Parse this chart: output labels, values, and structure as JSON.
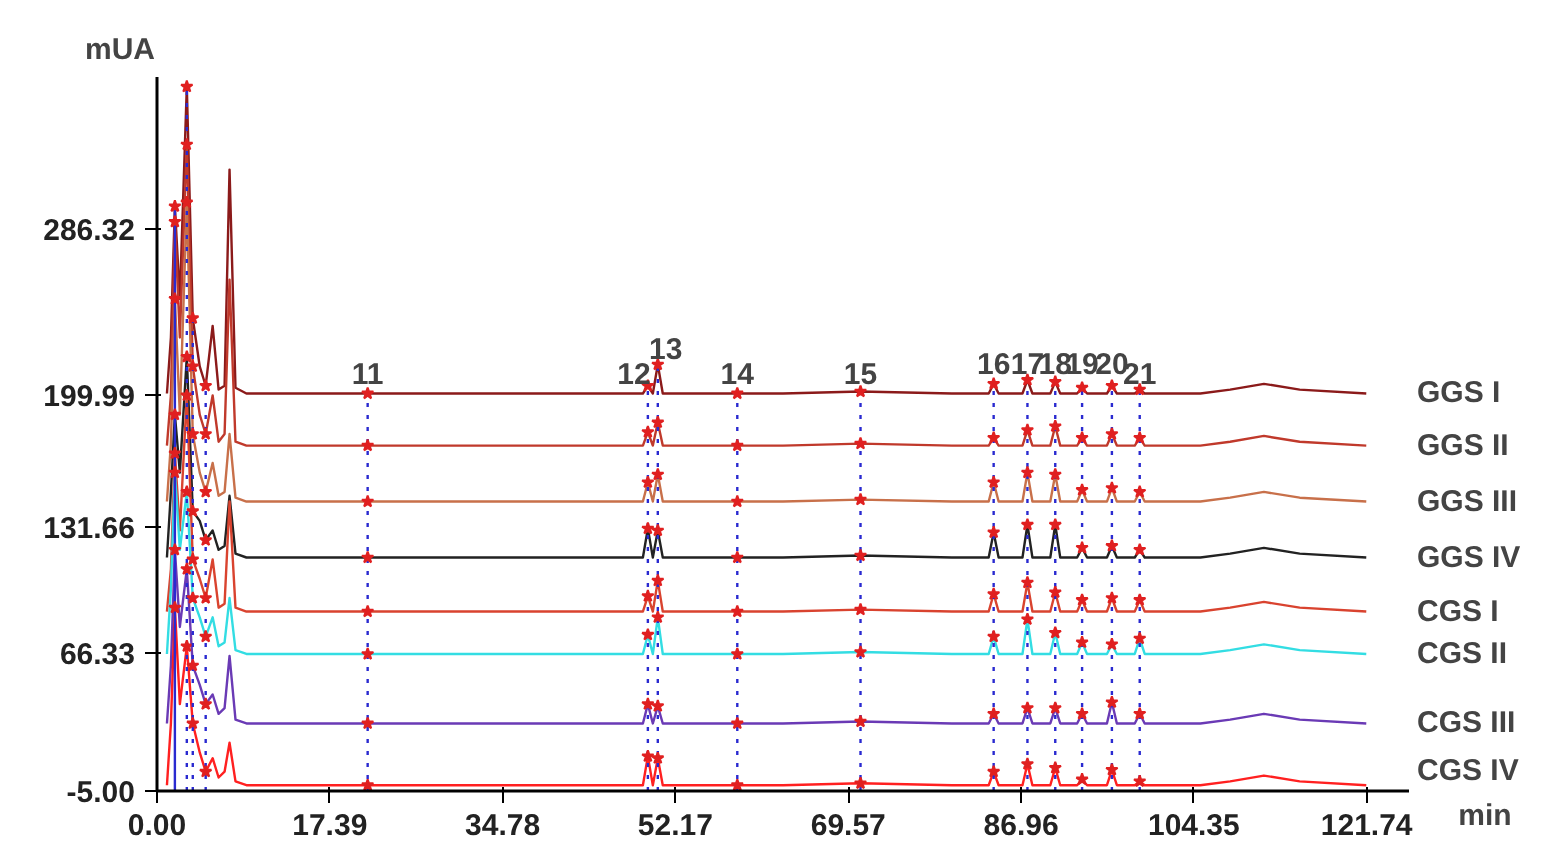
{
  "chart_data": {
    "type": "line",
    "xlabel": "min",
    "ylabel": "mUA",
    "x": [
      1.0,
      1.4,
      1.8,
      2.3,
      3.0,
      3.6,
      4.3,
      4.9,
      5.6,
      6.2,
      6.8,
      7.3,
      7.9,
      9,
      21.2,
      30,
      40,
      48.9,
      49.4,
      49.9,
      50.4,
      50.9,
      58.4,
      63,
      70.8,
      80,
      83.7,
      84.2,
      84.7,
      87.1,
      87.6,
      88.1,
      89.9,
      90.4,
      90.9,
      92.6,
      93.1,
      93.6,
      95.6,
      96.1,
      96.6,
      98.4,
      98.9,
      99.4,
      105,
      108,
      111.4,
      115,
      121.7
    ],
    "series": [
      {
        "name": "GGS I",
        "color": "#8b1a1a",
        "values": [
          201,
          230,
          298,
          250,
          360,
          240,
          215,
          205,
          236,
          203,
          205,
          317,
          204,
          201,
          201,
          201,
          201,
          201,
          205,
          201,
          216,
          201,
          201,
          201,
          202,
          201,
          201,
          206,
          201,
          201,
          208,
          201,
          201,
          207,
          201,
          201,
          204,
          201,
          201,
          205,
          201,
          201,
          203,
          201,
          201,
          203,
          206,
          203,
          201
        ]
      },
      {
        "name": "GGS II",
        "color": "#c0392b",
        "values": [
          174,
          200,
          290,
          230,
          330,
          215,
          190,
          180,
          200,
          176,
          180,
          260,
          176,
          174,
          174,
          174,
          174,
          174,
          181,
          174,
          186,
          174,
          174,
          174,
          175,
          174,
          174,
          178,
          174,
          174,
          182,
          174,
          174,
          184,
          174,
          174,
          178,
          174,
          174,
          180,
          174,
          174,
          178,
          174,
          174,
          176,
          179,
          176,
          174
        ]
      },
      {
        "name": "GGS III",
        "color": "#c8704a",
        "values": [
          145,
          175,
          250,
          190,
          300,
          180,
          160,
          150,
          165,
          148,
          150,
          180,
          147,
          145,
          145,
          145,
          145,
          145,
          155,
          145,
          159,
          145,
          145,
          145,
          146,
          145,
          145,
          155,
          145,
          145,
          160,
          145,
          145,
          159,
          145,
          145,
          151,
          145,
          145,
          152,
          145,
          145,
          150,
          145,
          145,
          147,
          150,
          147,
          145
        ]
      },
      {
        "name": "GGS IV",
        "color": "#222222",
        "values": [
          116,
          150,
          190,
          160,
          220,
          140,
          135,
          125,
          130,
          120,
          122,
          148,
          118,
          116,
          116,
          116,
          116,
          116,
          131,
          116,
          130,
          116,
          116,
          116,
          117,
          116,
          116,
          129,
          116,
          116,
          133,
          116,
          116,
          133,
          116,
          116,
          121,
          116,
          116,
          122,
          116,
          116,
          120,
          116,
          116,
          118,
          121,
          118,
          116
        ]
      },
      {
        "name": "CGS I",
        "color": "#d9432f",
        "values": [
          88,
          110,
          170,
          130,
          200,
          115,
          105,
          95,
          115,
          90,
          92,
          145,
          90,
          88,
          88,
          88,
          88,
          88,
          96,
          88,
          104,
          88,
          88,
          88,
          89,
          88,
          88,
          97,
          88,
          88,
          103,
          88,
          88,
          98,
          88,
          88,
          94,
          88,
          88,
          95,
          88,
          88,
          94,
          88,
          88,
          90,
          93,
          90,
          88
        ]
      },
      {
        "name": "CGS II",
        "color": "#33dde3",
        "values": [
          66,
          100,
          160,
          120,
          150,
          95,
          85,
          75,
          85,
          70,
          72,
          95,
          68,
          66,
          66,
          66,
          66,
          66,
          76,
          66,
          85,
          66,
          66,
          66,
          67,
          66,
          66,
          75,
          66,
          66,
          84,
          66,
          66,
          77,
          66,
          66,
          72,
          66,
          66,
          71,
          66,
          66,
          74,
          66,
          66,
          68,
          71,
          68,
          66
        ]
      },
      {
        "name": "CGS III",
        "color": "#6a3ab5",
        "values": [
          30,
          60,
          120,
          80,
          110,
          60,
          50,
          40,
          45,
          35,
          38,
          65,
          32,
          30,
          30,
          30,
          30,
          30,
          40,
          30,
          39,
          30,
          30,
          30,
          31,
          30,
          30,
          35,
          30,
          30,
          38,
          30,
          30,
          38,
          30,
          30,
          35,
          30,
          30,
          41,
          30,
          30,
          35,
          30,
          30,
          32,
          35,
          32,
          30
        ]
      },
      {
        "name": "CGS IV",
        "color": "#ff2020",
        "values": [
          -2,
          30,
          90,
          40,
          70,
          30,
          15,
          5,
          12,
          2,
          5,
          20,
          0,
          -2,
          -2,
          -2,
          -2,
          -2,
          13,
          -2,
          12,
          -2,
          -2,
          -2,
          -1,
          -2,
          -2,
          5,
          -2,
          -2,
          9,
          -2,
          -2,
          7,
          -2,
          -2,
          1,
          -2,
          -2,
          6,
          -2,
          -2,
          0,
          -2,
          -2,
          0,
          3,
          0,
          -2
        ]
      }
    ],
    "xlim": [
      0,
      126
    ],
    "ylim": [
      -5,
      365
    ],
    "xticks": [
      {
        "value": 0,
        "label": "0.00"
      },
      17.39,
      34.78,
      52.17,
      69.57,
      86.96,
      104.35,
      121.74
    ],
    "yticks": [
      {
        "value": -5,
        "label": "-5.00"
      },
      66.33,
      131.66,
      199.99,
      286.32
    ],
    "ref_lines": [
      {
        "axis": "x",
        "value": 1.8,
        "label": null,
        "color": "#2a2ad0",
        "line_style": "solid"
      },
      {
        "axis": "x",
        "value": 3.0,
        "label": null,
        "color": "#2a2ad0",
        "line_style": "dotted"
      },
      {
        "axis": "x",
        "value": 3.6,
        "label": null,
        "color": "#2a2ad0",
        "line_style": "dotted"
      },
      {
        "axis": "x",
        "value": 4.9,
        "label": null,
        "color": "#2a2ad0",
        "line_style": "dotted"
      },
      {
        "axis": "x",
        "value": 21.2,
        "label": null,
        "color": "#2a2ad0",
        "line_style": "dotted"
      },
      {
        "axis": "x",
        "value": 49.4,
        "label": null,
        "color": "#2a2ad0",
        "line_style": "dotted"
      },
      {
        "axis": "x",
        "value": 50.4,
        "label": null,
        "color": "#2a2ad0",
        "line_style": "dotted"
      },
      {
        "axis": "x",
        "value": 58.4,
        "label": null,
        "color": "#2a2ad0",
        "line_style": "dotted"
      },
      {
        "axis": "x",
        "value": 70.8,
        "label": null,
        "color": "#2a2ad0",
        "line_style": "dotted"
      },
      {
        "axis": "x",
        "value": 84.2,
        "label": null,
        "color": "#2a2ad0",
        "line_style": "dotted"
      },
      {
        "axis": "x",
        "value": 87.6,
        "label": null,
        "color": "#2a2ad0",
        "line_style": "dotted"
      },
      {
        "axis": "x",
        "value": 90.4,
        "label": null,
        "color": "#2a2ad0",
        "line_style": "dotted"
      },
      {
        "axis": "x",
        "value": 93.1,
        "label": null,
        "color": "#2a2ad0",
        "line_style": "dotted"
      },
      {
        "axis": "x",
        "value": 96.1,
        "label": null,
        "color": "#2a2ad0",
        "line_style": "dotted"
      },
      {
        "axis": "x",
        "value": 98.9,
        "label": null,
        "color": "#2a2ad0",
        "line_style": "dotted"
      }
    ],
    "annotations": [
      {
        "text": "11",
        "x": 21.2,
        "y": 206
      },
      {
        "text": "12",
        "x": 48.0,
        "y": 206
      },
      {
        "text": "13",
        "x": 51.2,
        "y": 219
      },
      {
        "text": "14",
        "x": 58.4,
        "y": 206
      },
      {
        "text": "15",
        "x": 70.8,
        "y": 206
      },
      {
        "text": "16",
        "x": 84.2,
        "y": 211
      },
      {
        "text": "17",
        "x": 87.6,
        "y": 211
      },
      {
        "text": "18",
        "x": 90.4,
        "y": 211
      },
      {
        "text": "19",
        "x": 93.1,
        "y": 211
      },
      {
        "text": "20",
        "x": 96.1,
        "y": 211
      },
      {
        "text": "21",
        "x": 98.9,
        "y": 206
      }
    ]
  }
}
